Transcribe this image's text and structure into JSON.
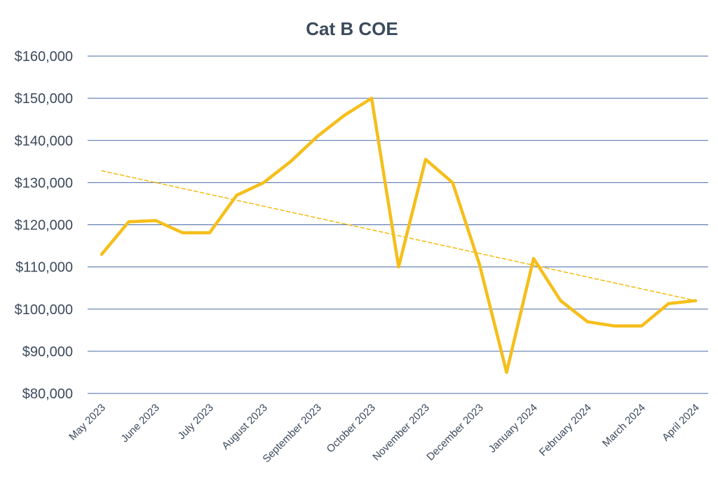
{
  "chart_data": {
    "type": "line",
    "title": "Cat B COE",
    "xlabel": "",
    "ylabel": "",
    "ylim": [
      80000,
      160000
    ],
    "y_ticks": [
      80000,
      90000,
      100000,
      110000,
      120000,
      130000,
      140000,
      150000,
      160000
    ],
    "y_tick_labels": [
      "$80,000",
      "$90,000",
      "$100,000",
      "$110,000",
      "$120,000",
      "$130,000",
      "$140,000",
      "$150,000",
      "$160,000"
    ],
    "x_tick_labels": [
      "May 2023",
      "June 2023",
      "July 2023",
      "August 2023",
      "September 2023",
      "October 2023",
      "November 2023",
      "December 2023",
      "January 2024",
      "February 2024",
      "March 2024",
      "April 2024"
    ],
    "grid": true,
    "series": [
      {
        "name": "Cat B COE",
        "color": "#f5be1a",
        "style": "solid",
        "values": [
          113000,
          120700,
          121000,
          118100,
          118100,
          127000,
          130000,
          135000,
          141000,
          146000,
          150000,
          110000,
          135500,
          130000,
          110500,
          85000,
          112000,
          102000,
          97000,
          96000,
          96000,
          101300,
          102000
        ]
      },
      {
        "name": "Trendline",
        "color": "#f5be1a",
        "style": "dashed",
        "values": [
          132800,
          102000
        ]
      }
    ]
  }
}
